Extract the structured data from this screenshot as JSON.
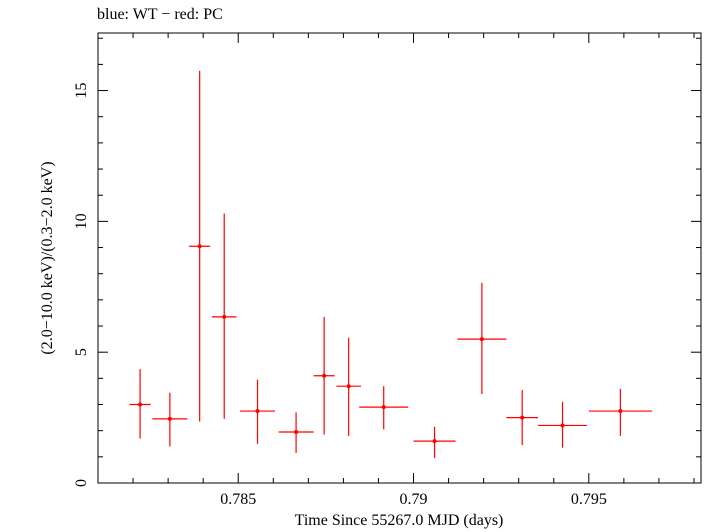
{
  "chart_data": {
    "type": "scatter",
    "title": "blue: WT − red: PC",
    "xlabel": "Time Since 55267.0 MJD (days)",
    "ylabel": "(2.0−10.0 keV)/(0.3−2.0 keV)",
    "xlim": [
      0.781,
      0.7982
    ],
    "ylim": [
      0,
      17.2
    ],
    "x_ticks": [
      0.785,
      0.79,
      0.795
    ],
    "x_tick_labels": [
      "0.785",
      "0.79",
      "0.795"
    ],
    "y_ticks": [
      0,
      5,
      10,
      15
    ],
    "y_tick_labels": [
      "0",
      "5",
      "10",
      "15"
    ],
    "grid": false,
    "series": [
      {
        "name": "PC",
        "color": "#ff0000",
        "points": [
          {
            "x": 0.7822,
            "xerr": 0.0003,
            "y": 3.0,
            "ylo": 1.7,
            "yhi": 4.35
          },
          {
            "x": 0.78305,
            "xerr": 0.0005,
            "y": 2.45,
            "ylo": 1.4,
            "yhi": 3.45
          },
          {
            "x": 0.7839,
            "xerr": 0.0003,
            "y": 9.05,
            "ylo": 2.35,
            "yhi": 15.75
          },
          {
            "x": 0.7846,
            "xerr": 0.00035,
            "y": 6.35,
            "ylo": 2.45,
            "yhi": 10.3
          },
          {
            "x": 0.78555,
            "xerr": 0.0005,
            "y": 2.75,
            "ylo": 1.5,
            "yhi": 3.95
          },
          {
            "x": 0.78665,
            "xerr": 0.0005,
            "y": 1.95,
            "ylo": 1.15,
            "yhi": 2.7
          },
          {
            "x": 0.78745,
            "xerr": 0.0003,
            "y": 4.1,
            "ylo": 1.85,
            "yhi": 6.35
          },
          {
            "x": 0.78815,
            "xerr": 0.00035,
            "y": 3.7,
            "ylo": 1.8,
            "yhi": 5.55
          },
          {
            "x": 0.78915,
            "xerr": 0.0007,
            "y": 2.9,
            "ylo": 2.05,
            "yhi": 3.7
          },
          {
            "x": 0.7906,
            "xerr": 0.0006,
            "y": 1.6,
            "ylo": 0.95,
            "yhi": 2.15
          },
          {
            "x": 0.79195,
            "xerr": 0.0007,
            "y": 5.5,
            "ylo": 3.4,
            "yhi": 7.65
          },
          {
            "x": 0.7931,
            "xerr": 0.00045,
            "y": 2.5,
            "ylo": 1.45,
            "yhi": 3.55
          },
          {
            "x": 0.79425,
            "xerr": 0.0007,
            "y": 2.2,
            "ylo": 1.35,
            "yhi": 3.1
          },
          {
            "x": 0.7959,
            "xerr": 0.0009,
            "y": 2.75,
            "ylo": 1.8,
            "yhi": 3.6
          }
        ]
      }
    ]
  }
}
